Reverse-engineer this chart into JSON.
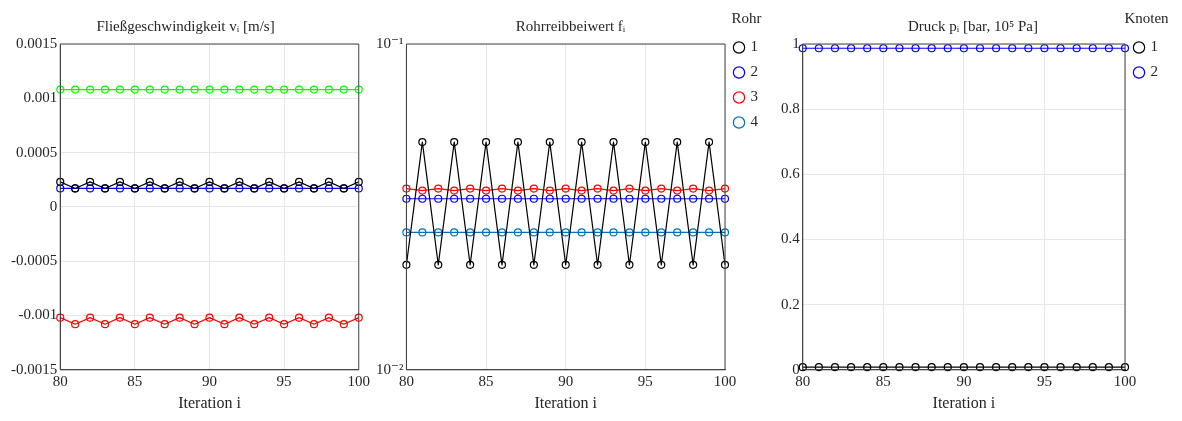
{
  "chart_data": [
    {
      "type": "line",
      "title": "Fließgeschwindigkeit vᵢ [m/s]",
      "xlabel": "Iteration i",
      "x": [
        80,
        81,
        82,
        83,
        84,
        85,
        86,
        87,
        88,
        89,
        90,
        91,
        92,
        93,
        94,
        95,
        96,
        97,
        98,
        99,
        100
      ],
      "xlim": [
        80,
        100
      ],
      "xticks": [
        80,
        85,
        90,
        95,
        100
      ],
      "ylim": [
        -0.0015,
        0.0015
      ],
      "yticks": [
        -0.0015,
        -0.001,
        -0.0005,
        0,
        0.0005,
        0.001,
        0.0015
      ],
      "grid": true,
      "legend": false,
      "marker": "circle",
      "series": [
        {
          "color": "#000000",
          "values": [
            0.00023,
            0.00017,
            0.00023,
            0.00017,
            0.00023,
            0.00017,
            0.00023,
            0.00017,
            0.00023,
            0.00017,
            0.00023,
            0.00017,
            0.00023,
            0.00017,
            0.00023,
            0.00017,
            0.00023,
            0.00017,
            0.00023,
            0.00017,
            0.00023
          ]
        },
        {
          "color": "#0000ff",
          "values": [
            0.00017,
            0.00017,
            0.00017,
            0.00017,
            0.00017,
            0.00017,
            0.00017,
            0.00017,
            0.00017,
            0.00017,
            0.00017,
            0.00017,
            0.00017,
            0.00017,
            0.00017,
            0.00017,
            0.00017,
            0.00017,
            0.00017,
            0.00017,
            0.00017
          ]
        },
        {
          "color": "#ff0000",
          "values": [
            -0.00102,
            -0.00108,
            -0.00102,
            -0.00108,
            -0.00102,
            -0.00108,
            -0.00102,
            -0.00108,
            -0.00102,
            -0.00108,
            -0.00102,
            -0.00108,
            -0.00102,
            -0.00108,
            -0.00102,
            -0.00108,
            -0.00102,
            -0.00108,
            -0.00102,
            -0.00108,
            -0.00102
          ]
        },
        {
          "color": "#00ff00",
          "values": [
            0.00108,
            0.00108,
            0.00108,
            0.00108,
            0.00108,
            0.00108,
            0.00108,
            0.00108,
            0.00108,
            0.00108,
            0.00108,
            0.00108,
            0.00108,
            0.00108,
            0.00108,
            0.00108,
            0.00108,
            0.00108,
            0.00108,
            0.00108,
            0.00108
          ]
        }
      ]
    },
    {
      "type": "line",
      "title": "Rohrreibbeiwert fᵢ",
      "xlabel": "Iteration i",
      "legend_title": "Rohr",
      "x": [
        80,
        81,
        82,
        83,
        84,
        85,
        86,
        87,
        88,
        89,
        90,
        91,
        92,
        93,
        94,
        95,
        96,
        97,
        98,
        99,
        100
      ],
      "xlim": [
        80,
        100
      ],
      "xticks": [
        80,
        85,
        90,
        95,
        100
      ],
      "log": "y",
      "ylim": [
        0.01,
        0.1
      ],
      "yticks": [
        {
          "value": 0.01,
          "label": "10⁻²"
        },
        {
          "value": 0.1,
          "label": "10⁻¹"
        }
      ],
      "grid": true,
      "legend": "right",
      "marker": "circle",
      "series": [
        {
          "name": "1",
          "color": "#000000",
          "values": [
            0.021,
            0.05,
            0.021,
            0.05,
            0.021,
            0.05,
            0.021,
            0.05,
            0.021,
            0.05,
            0.021,
            0.05,
            0.021,
            0.05,
            0.021,
            0.05,
            0.021,
            0.05,
            0.021,
            0.05,
            0.021
          ]
        },
        {
          "name": "2",
          "color": "#0000ff",
          "values": [
            0.0335,
            0.0335,
            0.0335,
            0.0335,
            0.0335,
            0.0335,
            0.0335,
            0.0335,
            0.0335,
            0.0335,
            0.0335,
            0.0335,
            0.0335,
            0.0335,
            0.0335,
            0.0335,
            0.0335,
            0.0335,
            0.0335,
            0.0335,
            0.0335
          ]
        },
        {
          "name": "3",
          "color": "#ff0000",
          "values": [
            0.036,
            0.0355,
            0.036,
            0.0355,
            0.036,
            0.0355,
            0.036,
            0.0355,
            0.036,
            0.0355,
            0.036,
            0.0355,
            0.036,
            0.0355,
            0.036,
            0.0355,
            0.036,
            0.0355,
            0.036,
            0.0355,
            0.036
          ]
        },
        {
          "name": "4",
          "color": "#0072bd",
          "values": [
            0.0264,
            0.0264,
            0.0264,
            0.0264,
            0.0264,
            0.0264,
            0.0264,
            0.0264,
            0.0264,
            0.0264,
            0.0264,
            0.0264,
            0.0264,
            0.0264,
            0.0264,
            0.0264,
            0.0264,
            0.0264,
            0.0264,
            0.0264,
            0.0264
          ]
        }
      ]
    },
    {
      "type": "line",
      "title": "Druck pᵢ [bar, 10⁵ Pa]",
      "xlabel": "Iteration i",
      "legend_title": "Knoten",
      "x": [
        80,
        81,
        82,
        83,
        84,
        85,
        86,
        87,
        88,
        89,
        90,
        91,
        92,
        93,
        94,
        95,
        96,
        97,
        98,
        99,
        100
      ],
      "xlim": [
        80,
        100
      ],
      "xticks": [
        80,
        85,
        90,
        95,
        100
      ],
      "ylim": [
        0,
        1
      ],
      "yticks": [
        0,
        0.2,
        0.4,
        0.6,
        0.8,
        1
      ],
      "grid": true,
      "legend": "right",
      "marker": "circle",
      "series": [
        {
          "name": "1",
          "color": "#000000",
          "values": [
            0.008,
            0.008,
            0.008,
            0.008,
            0.008,
            0.008,
            0.008,
            0.008,
            0.008,
            0.008,
            0.008,
            0.008,
            0.008,
            0.008,
            0.008,
            0.008,
            0.008,
            0.008,
            0.008,
            0.008,
            0.008
          ]
        },
        {
          "name": "2",
          "color": "#0000ff",
          "values": [
            0.987,
            0.987,
            0.987,
            0.987,
            0.987,
            0.987,
            0.987,
            0.987,
            0.987,
            0.987,
            0.987,
            0.987,
            0.987,
            0.987,
            0.987,
            0.987,
            0.987,
            0.987,
            0.987,
            0.987,
            0.987
          ]
        }
      ]
    }
  ]
}
